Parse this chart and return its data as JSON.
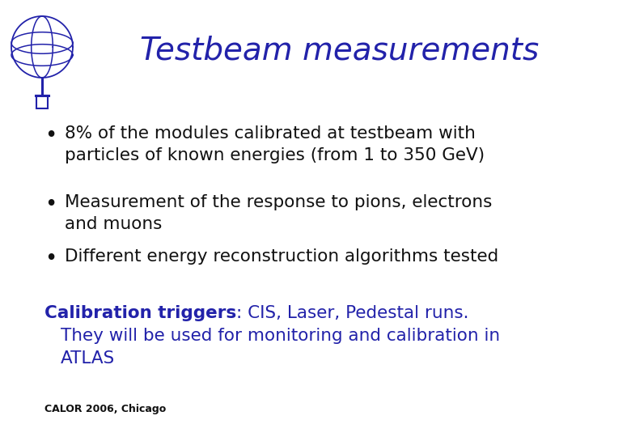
{
  "title": "Testbeam measurements",
  "title_color": "#2222AA",
  "title_fontsize": 28,
  "background_color": "#FFFFFF",
  "bullet_color": "#111111",
  "bullet_fontsize": 15.5,
  "bullets": [
    "8% of the modules calibrated at testbeam with\nparticles of known energies (from 1 to 350 GeV)",
    "Measurement of the response to pions, electrons\nand muons",
    "Different energy reconstruction algorithms tested"
  ],
  "calib_bold": "Calibration triggers",
  "calib_rest": ": CIS, Laser, Pedestal runs.",
  "calib_line2": "    They will be used for monitoring and calibration in",
  "calib_line3": "    ATLAS",
  "calib_color": "#2222AA",
  "calib_fontsize": 15.5,
  "footer": "CALOR 2006, Chicago",
  "footer_fontsize": 9,
  "footer_color": "#111111",
  "logo_color": "#2222AA"
}
